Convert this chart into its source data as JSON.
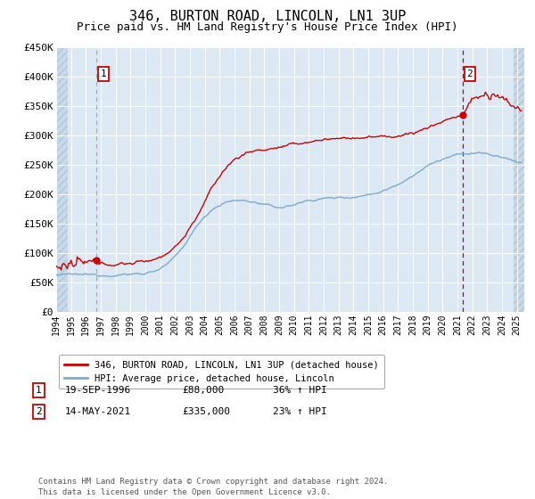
{
  "title": "346, BURTON ROAD, LINCOLN, LN1 3UP",
  "subtitle": "Price paid vs. HM Land Registry's House Price Index (HPI)",
  "title_fontsize": 11,
  "subtitle_fontsize": 9,
  "x_start_year": 1994,
  "x_end_year": 2025,
  "y_min": 0,
  "y_max": 450000,
  "y_ticks": [
    0,
    50000,
    100000,
    150000,
    200000,
    250000,
    300000,
    350000,
    400000,
    450000
  ],
  "y_tick_labels": [
    "£0",
    "£50K",
    "£100K",
    "£150K",
    "£200K",
    "£250K",
    "£300K",
    "£350K",
    "£400K",
    "£450K"
  ],
  "bg_color": "#dce9f5",
  "grid_color": "#ffffff",
  "red_line_color": "#cc0000",
  "blue_line_color": "#7aabcf",
  "sale1_year": 1996.72,
  "sale1_price": 88000,
  "sale2_year": 2021.37,
  "sale2_price": 335000,
  "vline1_color": "#aaaaaa",
  "vline2_color": "#cc0000",
  "legend_label_red": "346, BURTON ROAD, LINCOLN, LN1 3UP (detached house)",
  "legend_label_blue": "HPI: Average price, detached house, Lincoln",
  "table_row1": [
    "1",
    "19-SEP-1996",
    "£88,000",
    "36% ↑ HPI"
  ],
  "table_row2": [
    "2",
    "14-MAY-2021",
    "£335,000",
    "23% ↑ HPI"
  ],
  "footer": "Contains HM Land Registry data © Crown copyright and database right 2024.\nThis data is licensed under the Open Government Licence v3.0."
}
